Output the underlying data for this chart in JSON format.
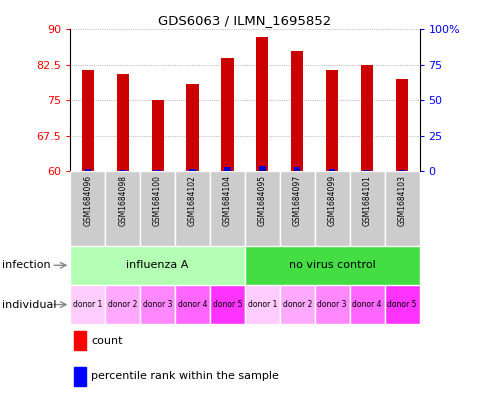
{
  "title": "GDS6063 / ILMN_1695852",
  "samples": [
    "GSM1684096",
    "GSM1684098",
    "GSM1684100",
    "GSM1684102",
    "GSM1684104",
    "GSM1684095",
    "GSM1684097",
    "GSM1684099",
    "GSM1684101",
    "GSM1684103"
  ],
  "count_values": [
    81.5,
    80.5,
    75.0,
    78.5,
    84.0,
    88.5,
    85.5,
    81.5,
    82.5,
    79.5
  ],
  "percentile_values": [
    1.5,
    1.0,
    1.0,
    1.5,
    2.5,
    3.5,
    2.5,
    1.5,
    1.0,
    1.0
  ],
  "ymin": 60,
  "ymax": 90,
  "yticks": [
    60,
    67.5,
    75,
    82.5,
    90
  ],
  "ytick_labels": [
    "60",
    "67.5",
    "75",
    "82.5",
    "90"
  ],
  "right_ytick_labels": [
    "0",
    "25",
    "50",
    "75",
    "100%"
  ],
  "infection_groups": [
    {
      "label": "influenza A",
      "start": 0,
      "end": 5,
      "color": "#b3ffb3"
    },
    {
      "label": "no virus control",
      "start": 5,
      "end": 10,
      "color": "#44dd44"
    }
  ],
  "individual_labels": [
    "donor 1",
    "donor 2",
    "donor 3",
    "donor 4",
    "donor 5",
    "donor 1",
    "donor 2",
    "donor 3",
    "donor 4",
    "donor 5"
  ],
  "individual_colors": [
    "#ffccff",
    "#ffaaff",
    "#ff88ff",
    "#ff66ff",
    "#ff33ff",
    "#ffccff",
    "#ffaaff",
    "#ff88ff",
    "#ff66ff",
    "#ff33ff"
  ],
  "bar_color": "#cc0000",
  "percentile_color": "#0000cc",
  "count_bar_width": 0.35,
  "percentile_bar_width": 0.18,
  "bg_color": "#ffffff",
  "sample_bg_color": "#cccccc"
}
